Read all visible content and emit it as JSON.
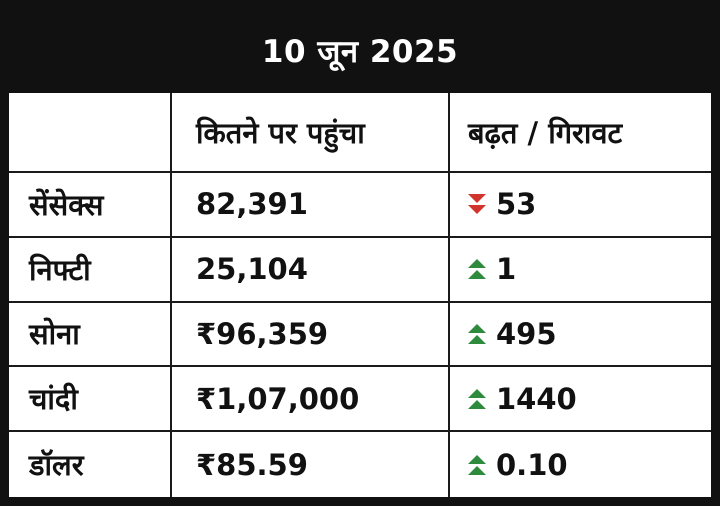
{
  "chart_data": {
    "type": "table",
    "title": "10 जून 2025",
    "columns": [
      "",
      "कितने पर पहुंचा",
      "बढ़त / गिरावट"
    ],
    "rows": [
      {
        "label": "सेंसेक्स",
        "value": "82,391",
        "change": "53",
        "direction": "down"
      },
      {
        "label": "निफ्टी",
        "value": "25,104",
        "change": "1",
        "direction": "up"
      },
      {
        "label": "सोना",
        "value": "₹96,359",
        "change": "495",
        "direction": "up"
      },
      {
        "label": "चांदी",
        "value": "₹1,07,000",
        "change": "1440",
        "direction": "up"
      },
      {
        "label": "डॉलर",
        "value": "₹85.59",
        "change": "0.10",
        "direction": "up"
      }
    ]
  },
  "colors": {
    "up": "#2e8b3d",
    "down": "#d0342c",
    "ink": "#111111"
  }
}
